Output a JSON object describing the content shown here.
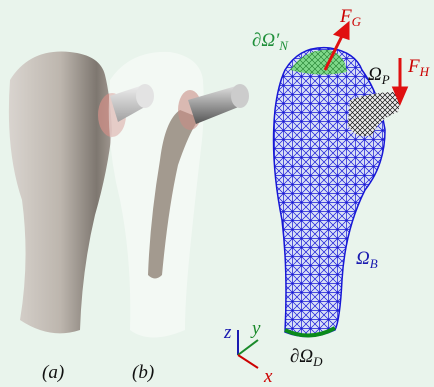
{
  "panels": [
    {
      "label": "(a)"
    },
    {
      "label": "(b)"
    }
  ],
  "annotations": [
    {
      "base": "F",
      "sub": "G"
    },
    {
      "base": "∂Ω′",
      "sub": "N"
    },
    {
      "base": "Ω",
      "sub": "P"
    },
    {
      "base": "F",
      "sub": "H"
    },
    {
      "base": "Ω",
      "sub": "B"
    },
    {
      "base": "∂Ω",
      "sub": "D"
    }
  ],
  "axes": {
    "x": "x",
    "y": "y",
    "z": "z"
  }
}
